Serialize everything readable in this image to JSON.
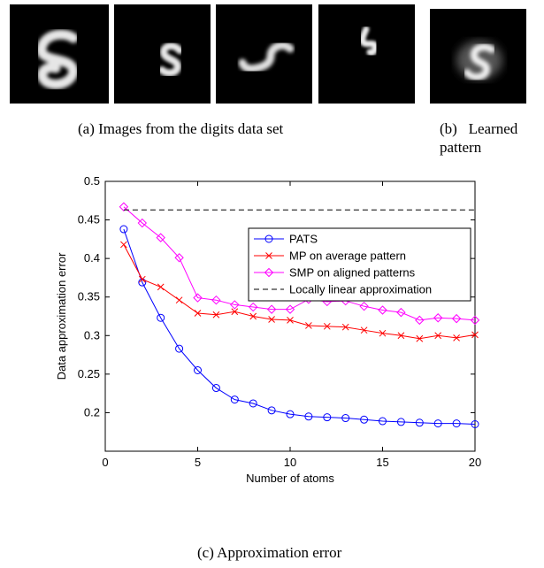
{
  "captions": {
    "a": "(a) Images from the digits data set",
    "b_line1": "(b)   Learned",
    "b_line2": "pattern",
    "c": "(c) Approximation error"
  },
  "images": [
    {
      "name": "digit-image-1",
      "description": "5"
    },
    {
      "name": "digit-image-2",
      "description": "5"
    },
    {
      "name": "digit-image-3",
      "description": "5"
    },
    {
      "name": "digit-image-4",
      "description": "5"
    },
    {
      "name": "learned-pattern-image",
      "description": "5"
    }
  ],
  "chart_data": {
    "type": "line",
    "title": "",
    "xlabel": "Number of atoms",
    "ylabel": "Data approximation error",
    "xlim": [
      0,
      20
    ],
    "ylim": [
      0.15,
      0.5
    ],
    "xticks": [
      0,
      5,
      10,
      15,
      20
    ],
    "yticks": [
      0.2,
      0.25,
      0.3,
      0.35,
      0.4,
      0.45,
      0.5
    ],
    "ytick_labels": [
      "0.2",
      "0.25",
      "0.3",
      "0.35",
      "0.4",
      "0.45",
      "0.5"
    ],
    "xtick_labels": [
      "0",
      "5",
      "10",
      "15",
      "20"
    ],
    "legend_position": "top-right",
    "x": [
      1,
      2,
      3,
      4,
      5,
      6,
      7,
      8,
      9,
      10,
      11,
      12,
      13,
      14,
      15,
      16,
      17,
      18,
      19,
      20
    ],
    "series": [
      {
        "name": "PATS",
        "color": "#0000ff",
        "marker": "circle",
        "values": [
          0.438,
          0.369,
          0.323,
          0.283,
          0.255,
          0.232,
          0.217,
          0.212,
          0.203,
          0.198,
          0.195,
          0.194,
          0.193,
          0.191,
          0.189,
          0.188,
          0.187,
          0.186,
          0.186,
          0.185
        ]
      },
      {
        "name": "MP on average pattern",
        "color": "#ff0000",
        "marker": "x",
        "values": [
          0.418,
          0.373,
          0.363,
          0.346,
          0.329,
          0.327,
          0.331,
          0.325,
          0.321,
          0.32,
          0.313,
          0.312,
          0.311,
          0.307,
          0.303,
          0.3,
          0.296,
          0.3,
          0.297,
          0.301
        ]
      },
      {
        "name": "SMP on aligned patterns",
        "color": "#ff00ff",
        "marker": "diamond",
        "values": [
          0.467,
          0.446,
          0.427,
          0.401,
          0.349,
          0.346,
          0.34,
          0.337,
          0.334,
          0.334,
          0.347,
          0.344,
          0.345,
          0.338,
          0.333,
          0.33,
          0.32,
          0.323,
          0.322,
          0.32
        ]
      },
      {
        "name": "Locally linear approximation",
        "color": "#000000",
        "marker": "none",
        "dashed": true,
        "values": [
          0.463,
          0.463,
          0.463,
          0.463,
          0.463,
          0.463,
          0.463,
          0.463,
          0.463,
          0.463,
          0.463,
          0.463,
          0.463,
          0.463,
          0.463,
          0.463,
          0.463,
          0.463,
          0.463,
          0.463
        ]
      }
    ]
  }
}
